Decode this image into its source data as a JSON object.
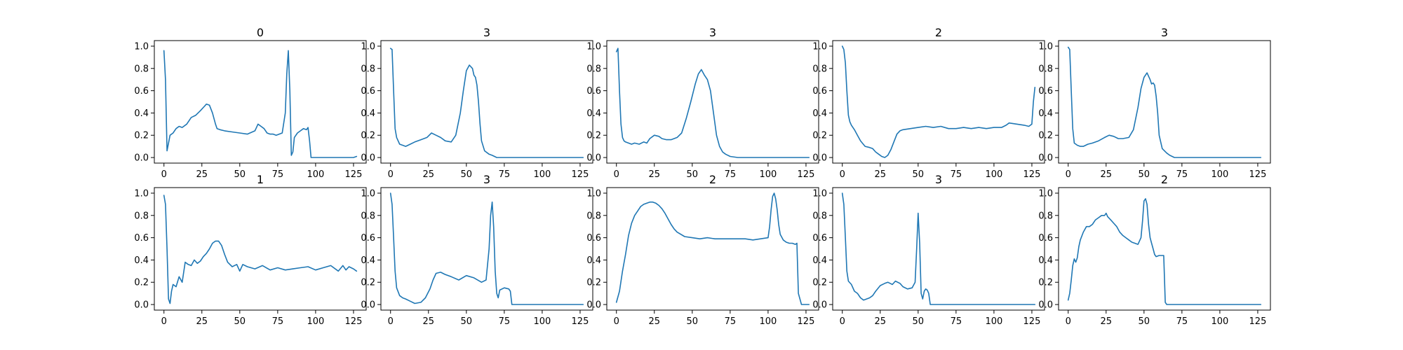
{
  "line_color": "#1f77b4",
  "chart_data": [
    {
      "type": "line",
      "title": "0",
      "xlim": [
        0,
        127
      ],
      "ylim": [
        0,
        1
      ],
      "xticks": [
        0,
        25,
        50,
        75,
        100,
        125
      ],
      "yticks": [
        0.0,
        0.2,
        0.4,
        0.6,
        0.8,
        1.0
      ],
      "series": [
        {
          "x": [
            0,
            1,
            2,
            4,
            6,
            8,
            10,
            12,
            15,
            18,
            21,
            24,
            26,
            28,
            30,
            32,
            34,
            35,
            37,
            40,
            45,
            50,
            55,
            60,
            62,
            64,
            66,
            68,
            70,
            72,
            74,
            76,
            78,
            80,
            81,
            82,
            83,
            84,
            85,
            86,
            88,
            90,
            92,
            94,
            95,
            96,
            97,
            100,
            105,
            110,
            115,
            120,
            125,
            127
          ],
          "y": [
            0.96,
            0.7,
            0.06,
            0.2,
            0.22,
            0.26,
            0.28,
            0.27,
            0.3,
            0.36,
            0.38,
            0.42,
            0.45,
            0.48,
            0.47,
            0.4,
            0.3,
            0.26,
            0.25,
            0.24,
            0.23,
            0.22,
            0.21,
            0.24,
            0.3,
            0.28,
            0.26,
            0.22,
            0.21,
            0.21,
            0.2,
            0.21,
            0.22,
            0.4,
            0.75,
            0.96,
            0.6,
            0.02,
            0.05,
            0.18,
            0.22,
            0.24,
            0.26,
            0.25,
            0.27,
            0.15,
            0.0,
            0.0,
            0.0,
            0.0,
            0.0,
            0.0,
            0.0,
            0.01
          ]
        }
      ]
    },
    {
      "type": "line",
      "title": "3",
      "xlim": [
        0,
        127
      ],
      "ylim": [
        0,
        1
      ],
      "xticks": [
        0,
        25,
        50,
        75,
        100,
        125
      ],
      "yticks": [
        0.0,
        0.2,
        0.4,
        0.6,
        0.8,
        1.0
      ],
      "series": [
        {
          "x": [
            0,
            1,
            2,
            3,
            4,
            6,
            8,
            10,
            13,
            16,
            20,
            24,
            27,
            30,
            33,
            36,
            40,
            43,
            46,
            48,
            50,
            52,
            54,
            55,
            56,
            57,
            58,
            59,
            60,
            62,
            65,
            67,
            70,
            75,
            80,
            100,
            127
          ],
          "y": [
            0.98,
            0.97,
            0.6,
            0.26,
            0.18,
            0.12,
            0.11,
            0.1,
            0.12,
            0.14,
            0.16,
            0.18,
            0.22,
            0.2,
            0.18,
            0.15,
            0.14,
            0.2,
            0.4,
            0.6,
            0.78,
            0.83,
            0.8,
            0.74,
            0.72,
            0.65,
            0.5,
            0.3,
            0.15,
            0.06,
            0.03,
            0.02,
            0.0,
            0.0,
            0.0,
            0.0,
            0.0
          ]
        }
      ]
    },
    {
      "type": "line",
      "title": "3",
      "xlim": [
        0,
        127
      ],
      "ylim": [
        0,
        1
      ],
      "xticks": [
        0,
        25,
        50,
        75,
        100,
        125
      ],
      "yticks": [
        0.0,
        0.2,
        0.4,
        0.6,
        0.8,
        1.0
      ],
      "series": [
        {
          "x": [
            0,
            1,
            2,
            3,
            4,
            5,
            6,
            8,
            10,
            12,
            15,
            18,
            20,
            22,
            25,
            28,
            30,
            33,
            36,
            40,
            43,
            46,
            49,
            52,
            54,
            56,
            58,
            60,
            62,
            64,
            66,
            68,
            70,
            72,
            75,
            80,
            100,
            127
          ],
          "y": [
            0.95,
            0.98,
            0.6,
            0.3,
            0.18,
            0.15,
            0.14,
            0.13,
            0.12,
            0.13,
            0.12,
            0.14,
            0.13,
            0.17,
            0.2,
            0.19,
            0.17,
            0.16,
            0.16,
            0.18,
            0.22,
            0.35,
            0.5,
            0.66,
            0.75,
            0.79,
            0.74,
            0.7,
            0.6,
            0.4,
            0.2,
            0.1,
            0.05,
            0.03,
            0.01,
            0.0,
            0.0,
            0.0
          ]
        }
      ]
    },
    {
      "type": "line",
      "title": "2",
      "xlim": [
        0,
        127
      ],
      "ylim": [
        0,
        1
      ],
      "xticks": [
        0,
        25,
        50,
        75,
        100,
        125
      ],
      "yticks": [
        0.0,
        0.2,
        0.4,
        0.6,
        0.8,
        1.0
      ],
      "series": [
        {
          "x": [
            0,
            1,
            2,
            3,
            4,
            5,
            6,
            8,
            10,
            12,
            15,
            18,
            20,
            22,
            24,
            26,
            28,
            30,
            32,
            34,
            36,
            38,
            40,
            45,
            50,
            55,
            60,
            65,
            70,
            75,
            80,
            85,
            90,
            95,
            100,
            105,
            108,
            110,
            115,
            120,
            123,
            125,
            126,
            127
          ],
          "y": [
            1.0,
            0.97,
            0.85,
            0.6,
            0.38,
            0.32,
            0.29,
            0.25,
            0.2,
            0.15,
            0.1,
            0.09,
            0.08,
            0.05,
            0.03,
            0.01,
            0.0,
            0.02,
            0.07,
            0.14,
            0.21,
            0.24,
            0.25,
            0.26,
            0.27,
            0.28,
            0.27,
            0.28,
            0.26,
            0.26,
            0.27,
            0.26,
            0.27,
            0.26,
            0.27,
            0.27,
            0.29,
            0.31,
            0.3,
            0.29,
            0.28,
            0.3,
            0.5,
            0.63
          ]
        }
      ]
    },
    {
      "type": "line",
      "title": "3",
      "xlim": [
        0,
        127
      ],
      "ylim": [
        0,
        1
      ],
      "xticks": [
        0,
        25,
        50,
        75,
        100,
        125
      ],
      "yticks": [
        0.0,
        0.2,
        0.4,
        0.6,
        0.8,
        1.0
      ],
      "series": [
        {
          "x": [
            0,
            1,
            2,
            3,
            4,
            6,
            8,
            10,
            13,
            16,
            20,
            24,
            27,
            30,
            33,
            36,
            40,
            43,
            46,
            48,
            50,
            52,
            54,
            55,
            56,
            57,
            58,
            59,
            60,
            62,
            65,
            67,
            70,
            75,
            80,
            100,
            127
          ],
          "y": [
            0.99,
            0.97,
            0.6,
            0.26,
            0.13,
            0.11,
            0.1,
            0.1,
            0.12,
            0.13,
            0.15,
            0.18,
            0.2,
            0.19,
            0.17,
            0.17,
            0.18,
            0.25,
            0.45,
            0.62,
            0.72,
            0.76,
            0.7,
            0.66,
            0.67,
            0.65,
            0.55,
            0.4,
            0.2,
            0.08,
            0.04,
            0.02,
            0.0,
            0.0,
            0.0,
            0.0,
            0.0
          ]
        }
      ]
    },
    {
      "type": "line",
      "title": "1",
      "xlim": [
        0,
        127
      ],
      "ylim": [
        0,
        1
      ],
      "xticks": [
        0,
        25,
        50,
        75,
        100,
        125
      ],
      "yticks": [
        0.0,
        0.2,
        0.4,
        0.6,
        0.8,
        1.0
      ],
      "series": [
        {
          "x": [
            0,
            1,
            2,
            3,
            4,
            5,
            6,
            8,
            10,
            12,
            14,
            16,
            18,
            20,
            22,
            24,
            26,
            28,
            30,
            32,
            34,
            36,
            38,
            40,
            42,
            45,
            48,
            50,
            52,
            55,
            60,
            65,
            70,
            75,
            80,
            85,
            90,
            95,
            100,
            105,
            110,
            115,
            118,
            120,
            122,
            125,
            127
          ],
          "y": [
            0.98,
            0.9,
            0.5,
            0.05,
            0.01,
            0.12,
            0.18,
            0.16,
            0.25,
            0.2,
            0.38,
            0.36,
            0.35,
            0.4,
            0.37,
            0.39,
            0.43,
            0.46,
            0.5,
            0.55,
            0.57,
            0.57,
            0.53,
            0.45,
            0.38,
            0.34,
            0.36,
            0.3,
            0.36,
            0.34,
            0.32,
            0.35,
            0.31,
            0.33,
            0.31,
            0.32,
            0.33,
            0.34,
            0.31,
            0.33,
            0.35,
            0.3,
            0.35,
            0.31,
            0.34,
            0.32,
            0.3
          ]
        }
      ]
    },
    {
      "type": "line",
      "title": "3",
      "xlim": [
        0,
        127
      ],
      "ylim": [
        0,
        1
      ],
      "xticks": [
        0,
        25,
        50,
        75,
        100,
        125
      ],
      "yticks": [
        0.0,
        0.2,
        0.4,
        0.6,
        0.8,
        1.0
      ],
      "series": [
        {
          "x": [
            0,
            1,
            2,
            3,
            4,
            6,
            8,
            10,
            13,
            16,
            20,
            23,
            26,
            28,
            30,
            33,
            36,
            40,
            45,
            50,
            55,
            60,
            63,
            65,
            66,
            67,
            68,
            69,
            70,
            71,
            72,
            75,
            78,
            79,
            80,
            85,
            100,
            127
          ],
          "y": [
            1.0,
            0.9,
            0.6,
            0.3,
            0.15,
            0.08,
            0.06,
            0.05,
            0.03,
            0.01,
            0.02,
            0.06,
            0.14,
            0.22,
            0.28,
            0.29,
            0.27,
            0.25,
            0.22,
            0.26,
            0.24,
            0.2,
            0.22,
            0.5,
            0.8,
            0.92,
            0.7,
            0.3,
            0.1,
            0.06,
            0.13,
            0.15,
            0.14,
            0.12,
            0.0,
            0.0,
            0.0,
            0.0
          ]
        }
      ]
    },
    {
      "type": "line",
      "title": "2",
      "xlim": [
        0,
        127
      ],
      "ylim": [
        0,
        1
      ],
      "xticks": [
        0,
        25,
        50,
        75,
        100,
        125
      ],
      "yticks": [
        0.0,
        0.2,
        0.4,
        0.6,
        0.8,
        1.0
      ],
      "series": [
        {
          "x": [
            0,
            2,
            4,
            6,
            8,
            10,
            12,
            14,
            16,
            18,
            20,
            22,
            24,
            26,
            28,
            30,
            32,
            34,
            36,
            38,
            40,
            45,
            50,
            55,
            60,
            65,
            70,
            75,
            80,
            85,
            90,
            95,
            100,
            101,
            102,
            103,
            104,
            105,
            106,
            107,
            108,
            110,
            112,
            114,
            116,
            118,
            119,
            120,
            122,
            125,
            127
          ],
          "y": [
            0.02,
            0.12,
            0.3,
            0.45,
            0.62,
            0.73,
            0.8,
            0.84,
            0.88,
            0.9,
            0.91,
            0.92,
            0.92,
            0.91,
            0.89,
            0.86,
            0.82,
            0.77,
            0.72,
            0.68,
            0.65,
            0.61,
            0.6,
            0.59,
            0.6,
            0.59,
            0.59,
            0.59,
            0.59,
            0.59,
            0.58,
            0.59,
            0.6,
            0.7,
            0.85,
            0.97,
            1.0,
            0.95,
            0.85,
            0.72,
            0.63,
            0.58,
            0.56,
            0.55,
            0.55,
            0.54,
            0.55,
            0.1,
            0.0,
            0.0,
            0.0
          ]
        }
      ]
    },
    {
      "type": "line",
      "title": "3",
      "xlim": [
        0,
        127
      ],
      "ylim": [
        0,
        1
      ],
      "xticks": [
        0,
        25,
        50,
        75,
        100,
        125
      ],
      "yticks": [
        0.0,
        0.2,
        0.4,
        0.6,
        0.8,
        1.0
      ],
      "series": [
        {
          "x": [
            0,
            1,
            2,
            3,
            4,
            6,
            8,
            10,
            12,
            14,
            16,
            18,
            20,
            22,
            25,
            28,
            30,
            33,
            35,
            38,
            40,
            43,
            46,
            48,
            49,
            50,
            51,
            52,
            53,
            54,
            55,
            56,
            57,
            58,
            60,
            65,
            70,
            100,
            127
          ],
          "y": [
            1.0,
            0.9,
            0.6,
            0.3,
            0.21,
            0.18,
            0.12,
            0.1,
            0.06,
            0.04,
            0.05,
            0.06,
            0.08,
            0.12,
            0.17,
            0.19,
            0.2,
            0.18,
            0.21,
            0.19,
            0.16,
            0.14,
            0.15,
            0.2,
            0.5,
            0.82,
            0.55,
            0.1,
            0.05,
            0.12,
            0.14,
            0.13,
            0.1,
            0.0,
            0.0,
            0.0,
            0.0,
            0.0,
            0.0
          ]
        }
      ]
    },
    {
      "type": "line",
      "title": "2",
      "xlim": [
        0,
        127
      ],
      "ylim": [
        0,
        1
      ],
      "xticks": [
        0,
        25,
        50,
        75,
        100,
        125
      ],
      "yticks": [
        0.0,
        0.2,
        0.4,
        0.6,
        0.8,
        1.0
      ],
      "series": [
        {
          "x": [
            0,
            1,
            2,
            3,
            4,
            5,
            6,
            7,
            8,
            10,
            12,
            14,
            16,
            18,
            20,
            22,
            24,
            25,
            26,
            28,
            30,
            32,
            34,
            36,
            38,
            40,
            42,
            44,
            46,
            48,
            49,
            50,
            51,
            52,
            53,
            54,
            55,
            56,
            57,
            58,
            60,
            62,
            63,
            64,
            65,
            70,
            80,
            100,
            127
          ],
          "y": [
            0.04,
            0.1,
            0.22,
            0.35,
            0.41,
            0.38,
            0.42,
            0.52,
            0.58,
            0.65,
            0.7,
            0.7,
            0.72,
            0.76,
            0.78,
            0.8,
            0.8,
            0.82,
            0.79,
            0.76,
            0.73,
            0.7,
            0.65,
            0.62,
            0.6,
            0.58,
            0.56,
            0.55,
            0.54,
            0.6,
            0.75,
            0.93,
            0.95,
            0.9,
            0.72,
            0.6,
            0.55,
            0.5,
            0.45,
            0.43,
            0.44,
            0.44,
            0.44,
            0.02,
            0.0,
            0.0,
            0.0,
            0.0,
            0.0
          ]
        }
      ]
    }
  ]
}
